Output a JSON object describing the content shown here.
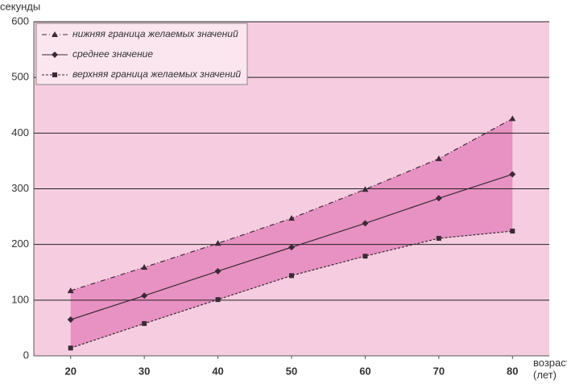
{
  "chart_data": {
    "type": "line",
    "y_label": "секунды",
    "x_label": "возраст (лет)",
    "x": [
      20,
      30,
      40,
      50,
      60,
      70,
      80
    ],
    "xlim": [
      15,
      85
    ],
    "xticks": [
      20,
      30,
      40,
      50,
      60,
      70,
      80
    ],
    "ylim": [
      0,
      600
    ],
    "yticks": [
      0,
      100,
      200,
      300,
      400,
      500,
      600
    ],
    "grid": true,
    "legend": "upper left",
    "background": "#f6cde0",
    "band_color": "#e582bb",
    "series": [
      {
        "name": "нижняя граница желаемых значений",
        "color": "#3b2a36",
        "marker": "triangle",
        "dash": "dashdot",
        "values": [
          117,
          159,
          202,
          247,
          299,
          354,
          426
        ]
      },
      {
        "name": "среднее значение",
        "color": "#3b2a36",
        "marker": "diamond",
        "dash": "solid",
        "values": [
          65,
          108,
          152,
          195,
          238,
          283,
          326
        ]
      },
      {
        "name": "верхняя граница желаемых значений",
        "color": "#3b2a36",
        "marker": "square",
        "dash": "dotted",
        "values": [
          14,
          58,
          101,
          144,
          179,
          211,
          224
        ]
      }
    ]
  }
}
